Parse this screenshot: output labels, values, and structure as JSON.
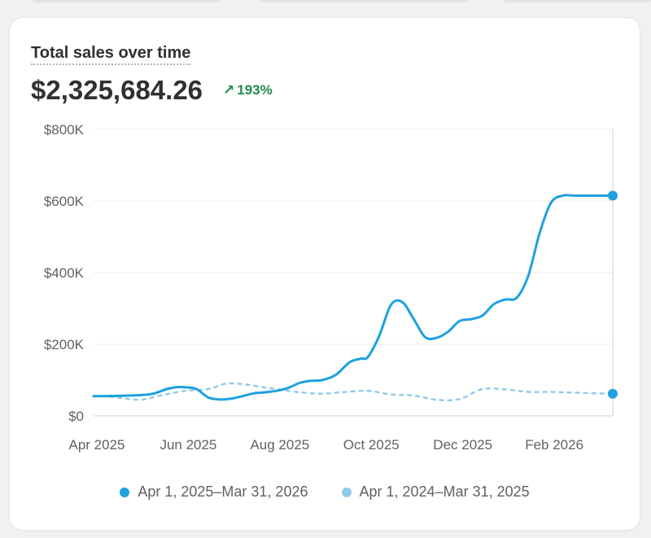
{
  "card": {
    "title": "Total sales over time",
    "total": "$2,325,684.26",
    "change_pct": "193%",
    "change_direction": "up"
  },
  "colors": {
    "current": "#1ea1df",
    "previous": "#93c9ea",
    "positive": "#1f8a4c"
  },
  "chart_data": {
    "type": "line",
    "title": "Total sales over time",
    "xlabel": "",
    "ylabel": "",
    "ylim": [
      0,
      800000
    ],
    "y_ticks": [
      {
        "value": 0,
        "label": "$0"
      },
      {
        "value": 200000,
        "label": "$200K"
      },
      {
        "value": 400000,
        "label": "$400K"
      },
      {
        "value": 600000,
        "label": "$600K"
      },
      {
        "value": 800000,
        "label": "$800K"
      }
    ],
    "x_ticks": [
      {
        "value": 0,
        "label": "Apr 2025"
      },
      {
        "value": 2,
        "label": "Jun 2025"
      },
      {
        "value": 4,
        "label": "Aug 2025"
      },
      {
        "value": 6,
        "label": "Oct 2025"
      },
      {
        "value": 8,
        "label": "Dec 2025"
      },
      {
        "value": 10,
        "label": "Feb 2026"
      }
    ],
    "xlim": [
      0,
      11.35
    ],
    "series": [
      {
        "name": "Apr 1, 2025–Mar 31, 2026",
        "style": "solid",
        "endpoint_marker": true,
        "x": [
          0,
          0.5,
          1,
          1.3,
          1.6,
          1.8,
          2,
          2.25,
          2.5,
          2.75,
          3,
          3.25,
          3.5,
          3.75,
          4,
          4.25,
          4.5,
          4.75,
          5,
          5.3,
          5.6,
          5.85,
          6,
          6.25,
          6.5,
          6.75,
          7,
          7.25,
          7.5,
          7.75,
          8,
          8.25,
          8.5,
          8.75,
          9,
          9.25,
          9.5,
          9.75,
          10,
          10.25,
          10.5,
          10.75,
          11,
          11.2,
          11.35
        ],
        "values": [
          55000,
          56000,
          58000,
          62000,
          75000,
          80000,
          80000,
          75000,
          52000,
          46000,
          48000,
          55000,
          63000,
          66000,
          70000,
          78000,
          92000,
          98000,
          100000,
          115000,
          150000,
          160000,
          165000,
          225000,
          310000,
          318000,
          270000,
          220000,
          218000,
          235000,
          265000,
          270000,
          280000,
          312000,
          325000,
          330000,
          390000,
          510000,
          595000,
          615000,
          615000,
          615000,
          615000,
          615000,
          615000
        ]
      },
      {
        "name": "Apr 1, 2024–Mar 31, 2025",
        "style": "dashed",
        "endpoint_marker": true,
        "x": [
          0,
          0.5,
          1,
          1.5,
          2,
          2.5,
          2.9,
          3.3,
          3.7,
          4,
          4.5,
          5,
          5.5,
          6,
          6.5,
          7,
          7.5,
          8,
          8.5,
          9,
          9.5,
          10,
          10.5,
          11,
          11.35
        ],
        "values": [
          55000,
          52000,
          45000,
          58000,
          70000,
          75000,
          90000,
          88000,
          80000,
          75000,
          66000,
          62000,
          67000,
          70000,
          60000,
          57000,
          45000,
          47000,
          75000,
          74000,
          67000,
          67000,
          65000,
          63000,
          62000
        ]
      }
    ]
  }
}
